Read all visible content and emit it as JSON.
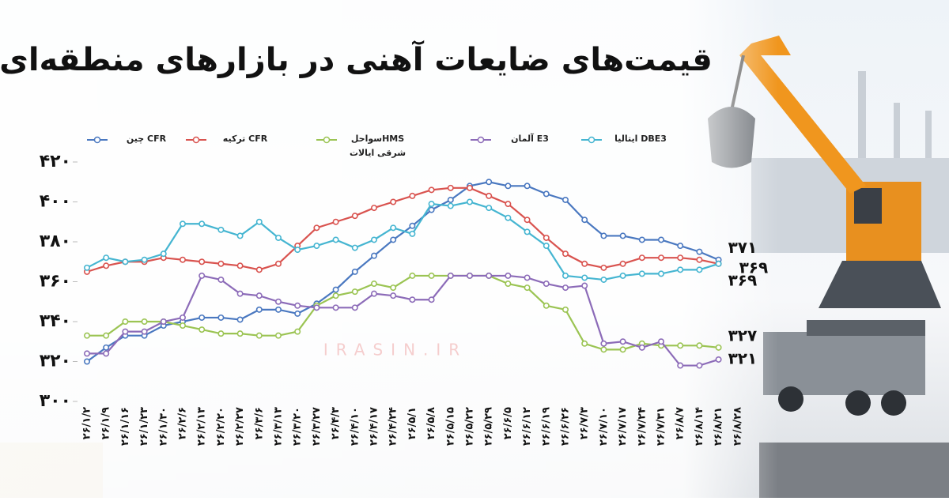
{
  "chart_data": {
    "type": "line",
    "title": "قیمت‌های ضایعات آهنی در بازارهای منطقه‌ای",
    "watermark": "IRASIN.IR",
    "categories": [
      "۲۶/۱/۲",
      "۲۶/۱/۹",
      "۲۶/۱/۱۶",
      "۲۶/۱/۲۳",
      "۲۶/۱/۳۰",
      "۲۶/۲/۶",
      "۲۶/۲/۱۳",
      "۲۶/۲/۲۰",
      "۲۶/۲/۲۷",
      "۲۶/۳/۶",
      "۲۶/۳/۱۳",
      "۲۶/۳/۲۰",
      "۲۶/۳/۲۷",
      "۲۶/۴/۳",
      "۲۶/۴/۱۰",
      "۲۶/۴/۱۷",
      "۲۶/۴/۲۴",
      "۲۶/۵/۱",
      "۲۶/۵/۸",
      "۲۶/۵/۱۵",
      "۲۶/۵/۲۲",
      "۲۶/۵/۲۹",
      "۲۶/۶/۵",
      "۲۶/۶/۱۲",
      "۲۶/۶/۱۹",
      "۲۶/۶/۲۶",
      "۲۶/۷/۳",
      "۲۶/۷/۱۰",
      "۲۶/۷/۱۷",
      "۲۶/۷/۲۴",
      "۲۶/۷/۳۱",
      "۲۶/۸/۷",
      "۲۶/۸/۱۴",
      "۲۶/۸/۲۱",
      "۲۶/۸/۲۸"
    ],
    "ylim": [
      300,
      420
    ],
    "yticks": [
      {
        "value": 300,
        "label": "۳۰۰"
      },
      {
        "value": 320,
        "label": "۳۲۰"
      },
      {
        "value": 340,
        "label": "۳۴۰"
      },
      {
        "value": 360,
        "label": "۳۶۰"
      },
      {
        "value": 380,
        "label": "۳۸۰"
      },
      {
        "value": 400,
        "label": "۴۰۰"
      },
      {
        "value": 420,
        "label": "۴۲۰"
      }
    ],
    "grid": false,
    "series": [
      {
        "name": "CFR چین",
        "color": "#4a78c0",
        "values": [
          320,
          327,
          333,
          333,
          338,
          340,
          342,
          342,
          341,
          346,
          346,
          344,
          349,
          356,
          365,
          373,
          381,
          388,
          396,
          401,
          408,
          410,
          408,
          408,
          404,
          401,
          391,
          383,
          383,
          381,
          381,
          378,
          375,
          371,
          null
        ],
        "value_labels": [
          null,
          null,
          null,
          null,
          null,
          null,
          null,
          null,
          null,
          null,
          null,
          null,
          null,
          null,
          null,
          null,
          null,
          null,
          null,
          null,
          null,
          null,
          null,
          null,
          null,
          null,
          null,
          null,
          null,
          null,
          null,
          null,
          null,
          "۳۷۱",
          null
        ]
      },
      {
        "name": "CFR ترکیه",
        "color": "#d9534f",
        "values": [
          365,
          368,
          370,
          370,
          372,
          371,
          370,
          369,
          368,
          366,
          369,
          378,
          387,
          390,
          393,
          397,
          400,
          403,
          406,
          407,
          407,
          403,
          399,
          391,
          382,
          374,
          369,
          367,
          369,
          372,
          372,
          372,
          371,
          369,
          null
        ],
        "value_labels": [
          null,
          null,
          null,
          null,
          null,
          null,
          null,
          null,
          null,
          null,
          null,
          null,
          null,
          null,
          null,
          null,
          null,
          null,
          null,
          null,
          null,
          null,
          null,
          null,
          null,
          null,
          null,
          null,
          null,
          null,
          null,
          null,
          null,
          "۳۶۹",
          null
        ]
      },
      {
        "name": "HMSسواحل شرقی ایالات متحده",
        "color": "#9bc453",
        "values": [
          333,
          333,
          340,
          340,
          340,
          338,
          336,
          334,
          334,
          333,
          333,
          335,
          348,
          353,
          355,
          359,
          357,
          363,
          363,
          363,
          363,
          363,
          359,
          357,
          348,
          346,
          329,
          326,
          326,
          329,
          328,
          328,
          328,
          327,
          null
        ],
        "value_labels": [
          null,
          null,
          null,
          null,
          null,
          null,
          null,
          null,
          null,
          null,
          null,
          null,
          null,
          null,
          null,
          null,
          null,
          null,
          null,
          null,
          null,
          null,
          null,
          null,
          null,
          null,
          null,
          null,
          null,
          null,
          null,
          null,
          null,
          "۳۲۷",
          null
        ]
      },
      {
        "name": "E3 آلمان",
        "color": "#8c6bb8",
        "values": [
          324,
          324,
          335,
          335,
          340,
          342,
          363,
          361,
          354,
          353,
          350,
          348,
          347,
          347,
          347,
          354,
          353,
          351,
          351,
          363,
          363,
          363,
          363,
          362,
          359,
          357,
          358,
          329,
          330,
          327,
          330,
          318,
          318,
          321,
          null
        ],
        "value_labels": [
          null,
          null,
          null,
          null,
          null,
          null,
          null,
          null,
          null,
          null,
          null,
          null,
          null,
          null,
          null,
          null,
          null,
          null,
          null,
          null,
          null,
          null,
          null,
          null,
          null,
          null,
          null,
          null,
          null,
          null,
          null,
          null,
          null,
          "۳۲۱",
          null
        ]
      },
      {
        "name": "DBE3 ایتالیا",
        "color": "#45b5d1",
        "values": [
          367,
          372,
          370,
          371,
          374,
          389,
          389,
          386,
          383,
          390,
          382,
          376,
          378,
          381,
          377,
          381,
          387,
          384,
          399,
          398,
          400,
          397,
          392,
          385,
          378,
          363,
          362,
          361,
          363,
          364,
          364,
          366,
          366,
          369,
          null
        ],
        "value_labels": [
          null,
          null,
          null,
          null,
          null,
          null,
          null,
          null,
          null,
          null,
          null,
          null,
          null,
          null,
          null,
          null,
          null,
          null,
          null,
          null,
          null,
          null,
          null,
          null,
          null,
          null,
          null,
          null,
          null,
          null,
          null,
          null,
          null,
          "۳۶۹",
          null
        ]
      }
    ]
  }
}
